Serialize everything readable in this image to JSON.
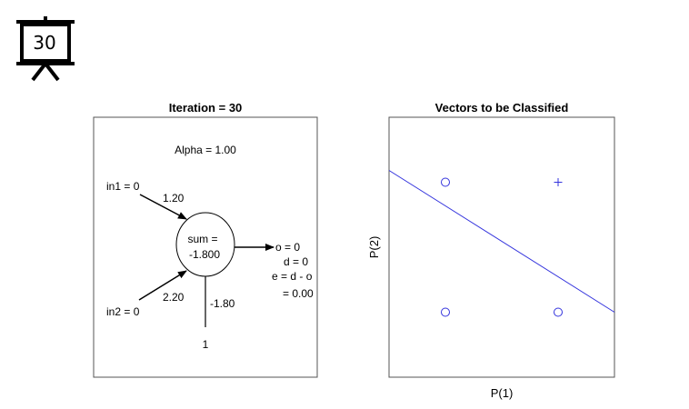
{
  "slide_number": "30",
  "left_panel": {
    "title": "Iteration = 30",
    "alpha": "Alpha = 1.00",
    "in1": "in1 = 0",
    "w1": "1.20",
    "in2": "in2 = 0",
    "w2": "2.20",
    "sum_line1": "sum =",
    "sum_line2": "-1.800",
    "o": "o = 0",
    "d": "d = 0",
    "e_line1": "e = d - o",
    "e_line2": "= 0.00",
    "bias_weight": "-1.80",
    "bias_input": "1"
  },
  "right_panel": {
    "title": "Vectors to be Classified",
    "xlabel": "P(1)",
    "ylabel": "P(2)"
  },
  "colors": {
    "series": "#3333dd",
    "frame": "#555555"
  },
  "chart_data": {
    "type": "scatter",
    "title": "Vectors to be Classified",
    "xlabel": "P(1)",
    "ylabel": "P(2)",
    "xlim": [
      -0.5,
      1.5
    ],
    "ylim": [
      -0.5,
      1.5
    ],
    "series": [
      {
        "marker": "circle",
        "points": [
          [
            0,
            0
          ],
          [
            1,
            0
          ],
          [
            0,
            1
          ]
        ]
      },
      {
        "marker": "plus",
        "points": [
          [
            1,
            1
          ]
        ]
      }
    ],
    "decision_boundary": {
      "w": [
        1.2,
        2.2
      ],
      "b": -1.8
    }
  }
}
